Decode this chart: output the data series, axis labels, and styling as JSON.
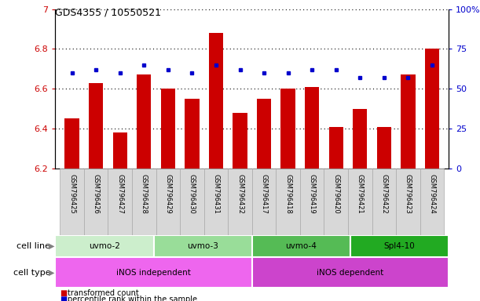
{
  "title": "GDS4355 / 10550521",
  "samples": [
    "GSM796425",
    "GSM796426",
    "GSM796427",
    "GSM796428",
    "GSM796429",
    "GSM796430",
    "GSM796431",
    "GSM796432",
    "GSM796417",
    "GSM796418",
    "GSM796419",
    "GSM796420",
    "GSM796421",
    "GSM796422",
    "GSM796423",
    "GSM796424"
  ],
  "bar_data": [
    6.45,
    6.63,
    6.38,
    6.67,
    6.6,
    6.55,
    6.88,
    6.48,
    6.55,
    6.6,
    6.61,
    6.41,
    6.5,
    6.41,
    6.67,
    6.8
  ],
  "percentile_data": [
    60,
    62,
    60,
    65,
    62,
    60,
    65,
    62,
    60,
    60,
    62,
    62,
    57,
    57,
    57,
    65
  ],
  "ylim": [
    6.2,
    7.0
  ],
  "yticks": [
    6.2,
    6.4,
    6.6,
    6.8,
    7.0
  ],
  "ytick_labels": [
    "6.2",
    "6.4",
    "6.6",
    "6.8",
    "7"
  ],
  "right_yticks": [
    0,
    25,
    50,
    75,
    100
  ],
  "right_ytick_labels": [
    "0",
    "25",
    "50",
    "75",
    "100%"
  ],
  "bar_color": "#cc0000",
  "percentile_color": "#0000cc",
  "bar_width": 0.6,
  "cell_line_groups": [
    {
      "label": "uvmo-2",
      "start": 0,
      "end": 4,
      "color": "#cceecc"
    },
    {
      "label": "uvmo-3",
      "start": 4,
      "end": 8,
      "color": "#88cc88"
    },
    {
      "label": "uvmo-4",
      "start": 8,
      "end": 12,
      "color": "#44aa44"
    },
    {
      "label": "Spl4-10",
      "start": 12,
      "end": 16,
      "color": "#22aa22"
    }
  ],
  "cell_type_groups": [
    {
      "label": "iNOS independent",
      "start": 0,
      "end": 8,
      "color": "#ee77ee"
    },
    {
      "label": "iNOS dependent",
      "start": 8,
      "end": 16,
      "color": "#cc55cc"
    }
  ],
  "legend_items": [
    {
      "label": "transformed count",
      "color": "#cc0000"
    },
    {
      "label": "percentile rank within the sample",
      "color": "#0000cc"
    }
  ],
  "tick_color_left": "#cc0000",
  "tick_color_right": "#0000cc"
}
